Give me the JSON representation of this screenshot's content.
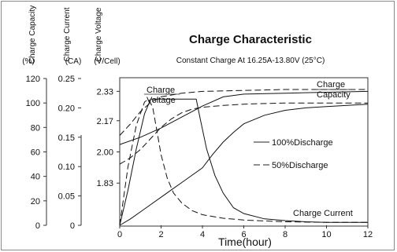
{
  "chart_data": {
    "type": "line",
    "title": "Charge Characteristic",
    "subtitle": "Constant Charge At 16.25A-13.80V  (25°C)",
    "title_color": "#ff5a1f",
    "xlabel": "Time(hour)",
    "xlim": [
      0,
      12
    ],
    "x_ticks": [
      "0",
      "2",
      "4",
      "6",
      "8",
      "10",
      "12"
    ],
    "axes": [
      {
        "name": "Charge Capacity",
        "unit": "(%)",
        "lim": [
          0,
          120
        ],
        "ticks": [
          "0",
          "20",
          "40",
          "60",
          "80",
          "100",
          "120"
        ]
      },
      {
        "name": "Charge Current",
        "unit": "(CA)",
        "lim": [
          0,
          0.25
        ],
        "ticks": [
          "0",
          "0.05",
          "0.10",
          "0.15",
          "0.20",
          "0.25"
        ]
      },
      {
        "name": "Charge Voltage",
        "unit": "(V/Cell)",
        "lim": [
          1.6,
          2.4
        ],
        "ticks": [
          "1.83",
          "2.00",
          "2.17",
          "2.33"
        ]
      }
    ],
    "legend": [
      {
        "label": "100%Discharge",
        "style": "solid"
      },
      {
        "label": "50%Discharge",
        "style": "dashed"
      }
    ],
    "annotations": {
      "voltage": [
        "Charge",
        "Voltage"
      ],
      "capacity": [
        "Charge",
        "Capacity"
      ],
      "current": "Charge Current"
    },
    "series": [
      {
        "axis": 0,
        "dash": false,
        "x": [
          0,
          0.5,
          1,
          1.5,
          2,
          2.5,
          3,
          3.5,
          4,
          4.5,
          5,
          5.5,
          6,
          7,
          8,
          9,
          10,
          11,
          12
        ],
        "values": [
          0,
          5,
          11,
          17,
          23,
          29,
          35,
          41,
          47,
          58,
          68,
          76,
          83,
          90,
          94,
          96,
          97,
          98,
          99
        ]
      },
      {
        "axis": 0,
        "dash": true,
        "x": [
          0,
          0.5,
          1,
          1.5,
          2,
          2.5,
          3,
          3.5,
          4,
          5,
          6,
          7,
          8,
          9,
          10,
          11,
          12
        ],
        "values": [
          50,
          55,
          62,
          71,
          80,
          87,
          92,
          95,
          96.5,
          98,
          99,
          99.5,
          100,
          100,
          100,
          100,
          100
        ]
      },
      {
        "axis": 1,
        "dash": false,
        "x": [
          0,
          0.4,
          0.8,
          1.2,
          1.5,
          2,
          2.5,
          3,
          3.5,
          3.7,
          3.9,
          4.2,
          4.6,
          5,
          5.5,
          6,
          7,
          8,
          9,
          10,
          12
        ],
        "values": [
          0,
          0.06,
          0.13,
          0.19,
          0.215,
          0.215,
          0.215,
          0.215,
          0.215,
          0.215,
          0.18,
          0.13,
          0.085,
          0.055,
          0.03,
          0.02,
          0.011,
          0.008,
          0.006,
          0.005,
          0.005
        ]
      },
      {
        "axis": 1,
        "dash": true,
        "x": [
          0,
          0.4,
          0.8,
          1.2,
          1.4,
          1.6,
          1.8,
          2,
          2.3,
          2.6,
          3,
          3.5,
          4,
          5,
          6,
          8,
          10,
          12
        ],
        "values": [
          0,
          0.1,
          0.17,
          0.21,
          0.215,
          0.2,
          0.16,
          0.12,
          0.08,
          0.055,
          0.038,
          0.025,
          0.018,
          0.012,
          0.009,
          0.006,
          0.005,
          0.005
        ]
      },
      {
        "axis": 2,
        "dash": false,
        "x": [
          0,
          1,
          2,
          3,
          4,
          5,
          6,
          8,
          10,
          12
        ],
        "values": [
          2.04,
          2.08,
          2.13,
          2.19,
          2.25,
          2.3,
          2.315,
          2.32,
          2.325,
          2.33
        ]
      },
      {
        "axis": 2,
        "dash": true,
        "x": [
          0,
          0.5,
          1,
          1.5,
          2,
          3,
          4,
          6,
          8,
          10,
          12
        ],
        "values": [
          2.09,
          2.15,
          2.22,
          2.27,
          2.3,
          2.32,
          2.33,
          2.335,
          2.34,
          2.34,
          2.34
        ]
      }
    ]
  }
}
